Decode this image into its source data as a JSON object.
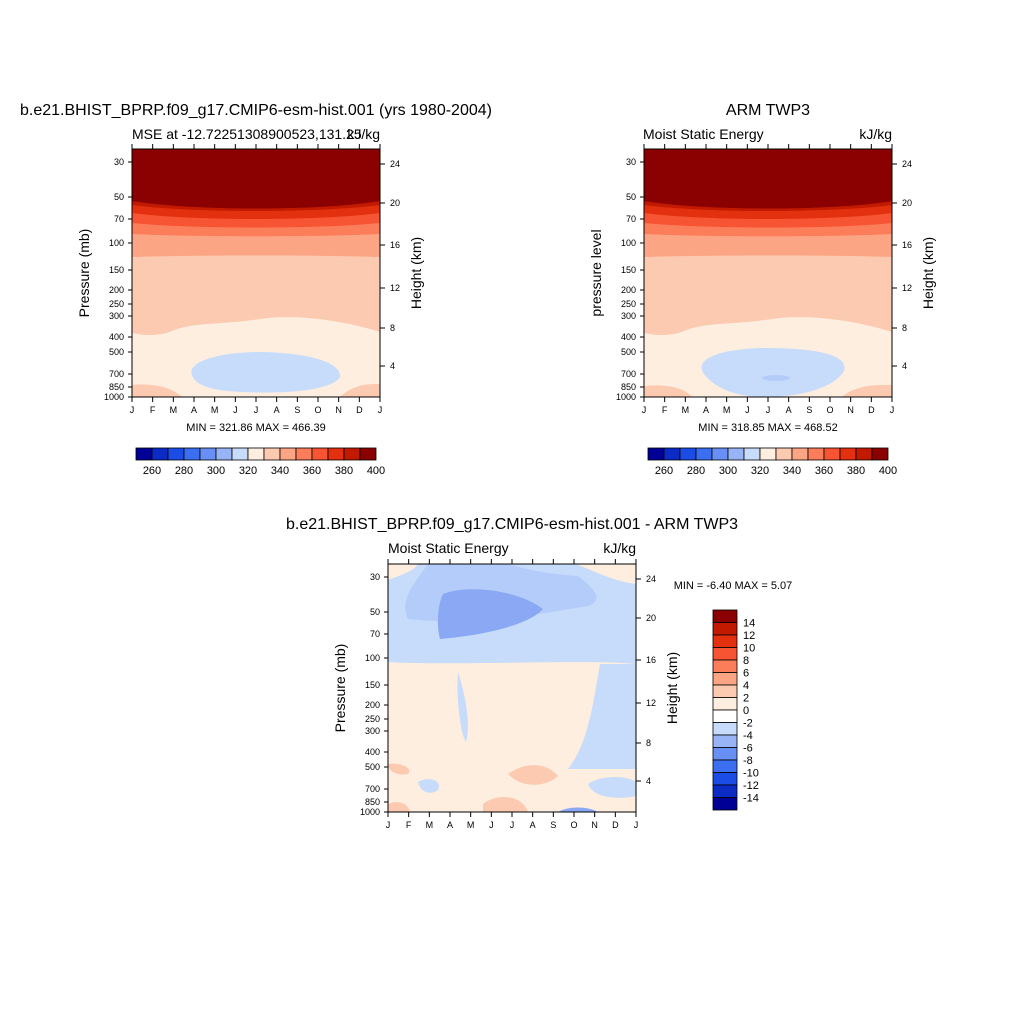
{
  "panels": [
    {
      "title": "b.e21.BHIST_BPRP.f09_g17.CMIP6-esm-hist.001 (yrs 1980-2004)",
      "left_string": "MSE at -12.72251308900523,131.25",
      "right_string": "kJ/kg",
      "ylabel": "Pressure (mb)",
      "ylabel_right": "Height (km)",
      "minmax": "MIN = 321.86 MAX = 466.39"
    },
    {
      "title": "ARM TWP3",
      "left_string": "Moist Static Energy",
      "right_string": "kJ/kg",
      "ylabel": "pressure level",
      "ylabel_right": "Height (km)",
      "minmax": "MIN = 318.85 MAX = 468.52"
    },
    {
      "title": "b.e21.BHIST_BPRP.f09_g17.CMIP6-esm-hist.001 - ARM TWP3",
      "left_string": "Moist Static Energy",
      "right_string": "kJ/kg",
      "ylabel": "Pressure (mb)",
      "ylabel_right": "Height (km)",
      "minmax": "MIN =  -6.40 MAX =   5.07"
    }
  ],
  "chart_data": [
    {
      "type": "heatmap",
      "subtype": "filled contour (month vs pressure)",
      "title": "b.e21.BHIST_BPRP.f09_g17.CMIP6-esm-hist.001 (yrs 1980-2004)",
      "x_ticks": [
        "J",
        "F",
        "M",
        "A",
        "M",
        "J",
        "J",
        "A",
        "S",
        "O",
        "N",
        "D",
        "J"
      ],
      "y_ticks": [
        "30",
        "50",
        "70",
        "100",
        "150",
        "200",
        "250",
        "300",
        "400",
        "500",
        "700",
        "850",
        "1000"
      ],
      "y_right_ticks": [
        "24",
        "20",
        "16",
        "12",
        "8",
        "4"
      ],
      "ylabel": "Pressure (mb)",
      "ylabel_right": "Height (km)",
      "units": "kJ/kg",
      "min": 321.86,
      "max": 466.39,
      "colorbar_labels": [
        "260",
        "280",
        "300",
        "320",
        "340",
        "360",
        "380",
        "400"
      ],
      "colorbar_colors": [
        "#000096",
        "#0c2ac4",
        "#1c4ce6",
        "#3c6ef2",
        "#6890f4",
        "#98b4f6",
        "#c6dcfa",
        "#fdeee0",
        "#fccab0",
        "#fca584",
        "#fb7d5a",
        "#f65433",
        "#e3300f",
        "#c11a00",
        "#8b0000"
      ]
    },
    {
      "type": "heatmap",
      "subtype": "filled contour (month vs pressure)",
      "title": "ARM TWP3",
      "x_ticks": [
        "J",
        "F",
        "M",
        "A",
        "M",
        "J",
        "J",
        "A",
        "S",
        "O",
        "N",
        "D",
        "J"
      ],
      "y_ticks": [
        "30",
        "50",
        "70",
        "100",
        "150",
        "200",
        "250",
        "300",
        "400",
        "500",
        "700",
        "850",
        "1000"
      ],
      "y_right_ticks": [
        "24",
        "20",
        "16",
        "12",
        "8",
        "4"
      ],
      "ylabel": "pressure level",
      "ylabel_right": "Height (km)",
      "units": "kJ/kg",
      "min": 318.85,
      "max": 468.52,
      "colorbar_labels": [
        "260",
        "280",
        "300",
        "320",
        "340",
        "360",
        "380",
        "400"
      ],
      "colorbar_colors": [
        "#000096",
        "#0c2ac4",
        "#1c4ce6",
        "#3c6ef2",
        "#6890f4",
        "#98b4f6",
        "#c6dcfa",
        "#fdeee0",
        "#fccab0",
        "#fca584",
        "#fb7d5a",
        "#f65433",
        "#e3300f",
        "#c11a00",
        "#8b0000"
      ]
    },
    {
      "type": "heatmap",
      "subtype": "filled contour difference (month vs pressure)",
      "title": "b.e21.BHIST_BPRP.f09_g17.CMIP6-esm-hist.001 - ARM TWP3",
      "x_ticks": [
        "J",
        "F",
        "M",
        "A",
        "M",
        "J",
        "J",
        "A",
        "S",
        "O",
        "N",
        "D",
        "J"
      ],
      "y_ticks": [
        "30",
        "50",
        "70",
        "100",
        "150",
        "200",
        "250",
        "300",
        "400",
        "500",
        "700",
        "850",
        "1000"
      ],
      "y_right_ticks": [
        "24",
        "20",
        "16",
        "12",
        "8",
        "4"
      ],
      "ylabel": "Pressure (mb)",
      "ylabel_right": "Height (km)",
      "units": "kJ/kg",
      "min": -6.4,
      "max": 5.07,
      "colorbar_labels": [
        "14",
        "12",
        "10",
        "8",
        "6",
        "4",
        "2",
        "0",
        "-2",
        "-4",
        "-6",
        "-8",
        "-10",
        "-12",
        "-14"
      ],
      "colorbar_colors": [
        "#8b0000",
        "#c11a00",
        "#e3300f",
        "#f65433",
        "#fb7d5a",
        "#fca584",
        "#fccab0",
        "#fdeee0",
        "#ffffff",
        "#c6dcfa",
        "#98b4f6",
        "#6890f4",
        "#3c6ef2",
        "#1c4ce6",
        "#0c2ac4",
        "#000096"
      ]
    }
  ],
  "colors": {
    "darkred": "#8b0000",
    "red1": "#c11a00",
    "red2": "#e3300f",
    "red3": "#f65433",
    "orange1": "#fb7d5a",
    "orange2": "#fca584",
    "peach": "#fccab0",
    "cream": "#fdeee0",
    "paleblue": "#c6dcfa",
    "lightblue": "#b4ccfa",
    "midblue": "#8aa8f4"
  }
}
